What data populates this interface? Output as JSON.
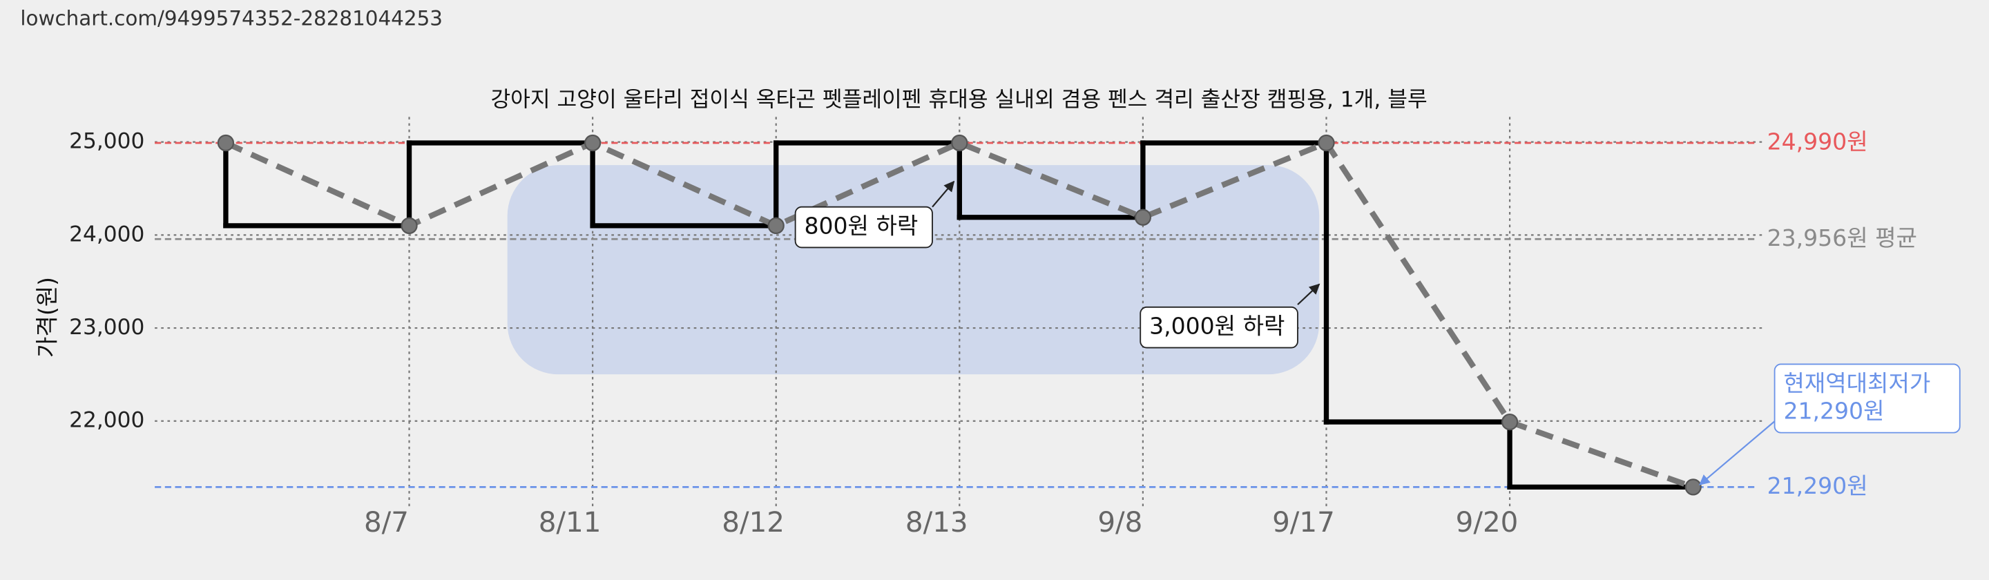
{
  "header": {
    "url": "lowchart.com/9499574352-28281044253"
  },
  "chart_data": {
    "type": "step-line",
    "title": "강아지 고양이 울타리 접이식 옥타곤 펫플레이펜 휴대용 실내외 겸용 펜스 격리 출산장 캠핑용, 1개, 블루",
    "y_label": "가격(원)",
    "categories": [
      null,
      "8/7",
      "8/11",
      "8/12",
      "8/13",
      "9/8",
      "9/17",
      "9/20",
      null
    ],
    "values": [
      24990,
      24100,
      24990,
      24100,
      24990,
      24190,
      24990,
      21990,
      21290
    ],
    "step_color": "#000000",
    "trend_color": "#777777",
    "ylim": [
      21070,
      25270
    ],
    "yticks": [
      {
        "value": 22000,
        "label": "22,000"
      },
      {
        "value": 23000,
        "label": "23,000"
      },
      {
        "value": 24000,
        "label": "24,000"
      },
      {
        "value": 25000,
        "label": "25,000"
      }
    ],
    "grid": true,
    "reference_lines": [
      {
        "value": 24990,
        "label": "24,990원",
        "color": "#e8585b"
      },
      {
        "value": 23956,
        "label": "23,956원 평균",
        "color": "#8a8a8a"
      },
      {
        "value": 21290,
        "label": "21,290원",
        "color": "#6b93e8"
      }
    ],
    "annotations": [
      {
        "lines": [
          "800원 하락"
        ]
      },
      {
        "lines": [
          "3,000원 하락"
        ]
      },
      {
        "lines": [
          "현재역대최저가",
          "21,290원"
        ]
      }
    ]
  }
}
